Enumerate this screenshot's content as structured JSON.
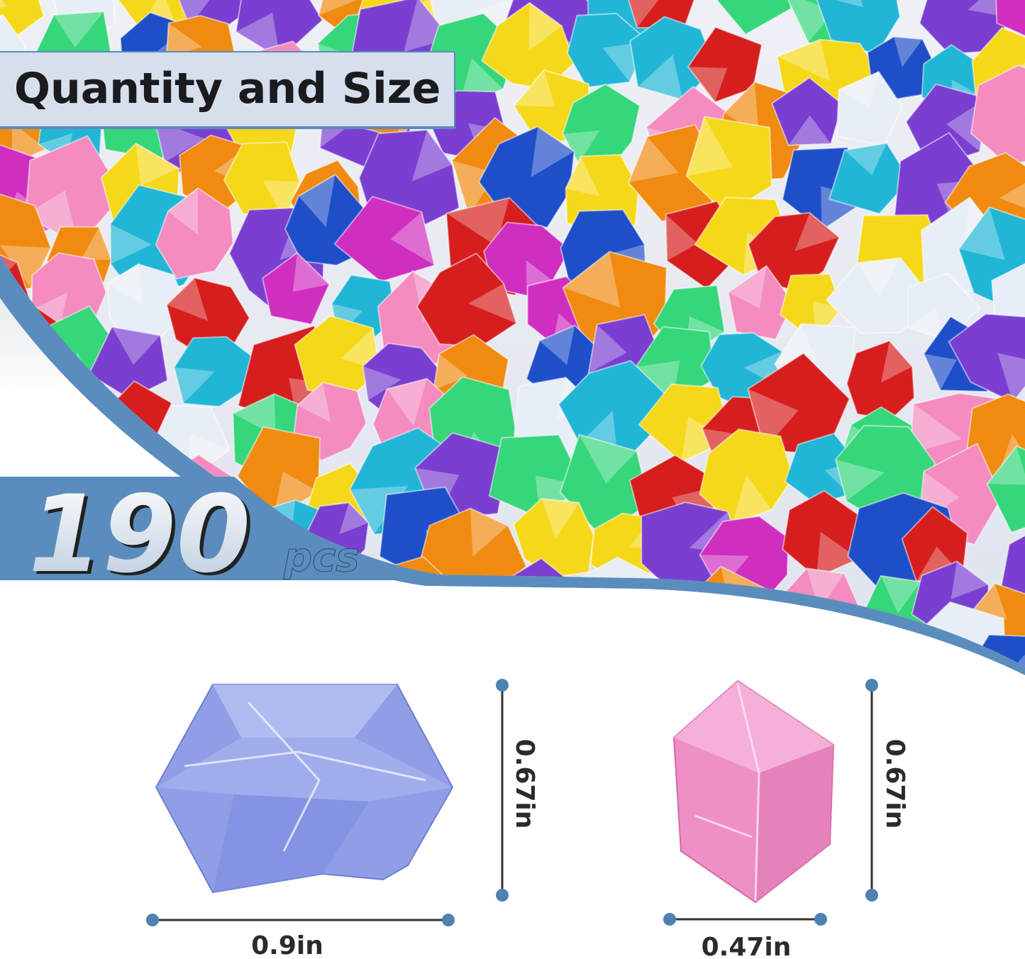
{
  "header": {
    "title": "Quantity and Size"
  },
  "quantity": {
    "number": "190",
    "unit": "pcs"
  },
  "dimensions": {
    "large_gem": {
      "height_label": "0.67in",
      "width_label": "0.9in",
      "color": "#8f9ee6"
    },
    "small_gem": {
      "height_label": "0.67in",
      "width_label": "0.47in",
      "color": "#ee8fc6"
    }
  },
  "colors": {
    "accent": "#5a8dbd",
    "dot": "#4f82b3",
    "gems": [
      "#d61e1e",
      "#f08a10",
      "#f6d81a",
      "#36d67a",
      "#22b6d6",
      "#1f4fc8",
      "#7a3fd0",
      "#d02ec0",
      "#f48cc0",
      "#e8eef5"
    ]
  }
}
